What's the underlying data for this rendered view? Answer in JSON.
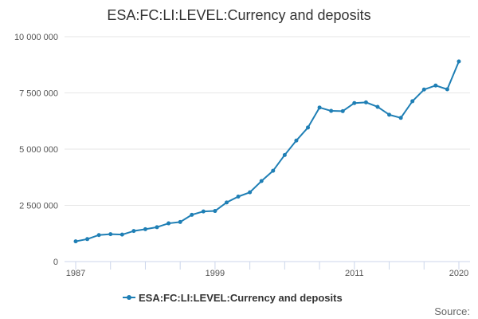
{
  "chart_data": {
    "type": "line",
    "title": "ESA:FC:LI:LEVEL:Currency and deposits",
    "xlabel": "",
    "ylabel": "",
    "x": [
      1987,
      1988,
      1989,
      1990,
      1991,
      1992,
      1993,
      1994,
      1995,
      1996,
      1997,
      1998,
      1999,
      2000,
      2001,
      2002,
      2003,
      2004,
      2005,
      2006,
      2007,
      2008,
      2009,
      2010,
      2011,
      2012,
      2013,
      2014,
      2015,
      2016,
      2017,
      2018,
      2019,
      2020
    ],
    "series": [
      {
        "name": "ESA:FC:LI:LEVEL:Currency and deposits",
        "color": "#1f7fb5",
        "values": [
          900000,
          1000000,
          1180000,
          1220000,
          1200000,
          1360000,
          1440000,
          1530000,
          1700000,
          1760000,
          2080000,
          2230000,
          2250000,
          2630000,
          2890000,
          3080000,
          3580000,
          4040000,
          4740000,
          5380000,
          5960000,
          6850000,
          6700000,
          6690000,
          7050000,
          7080000,
          6880000,
          6530000,
          6390000,
          7130000,
          7650000,
          7830000,
          7660000,
          8900000
        ]
      }
    ],
    "xlim": [
      1987,
      2020
    ],
    "ylim": [
      0,
      10000000
    ],
    "y_ticks": [
      0,
      2500000,
      5000000,
      7500000,
      10000000
    ],
    "y_tick_labels": [
      "0",
      "2 500 000",
      "5 000 000",
      "7 500 000",
      "10 000 000"
    ],
    "x_tick_values": [
      1987,
      1999,
      2011,
      2020
    ],
    "x_tick_labels": [
      "1987",
      "1999",
      "2011",
      "2020"
    ],
    "x_minor_ticks": [
      1987,
      1990,
      1993,
      1996,
      1999,
      2002,
      2005,
      2008,
      2011,
      2014,
      2017,
      2020
    ],
    "grid": true,
    "legend_position": "bottom-center",
    "credit": "Source:"
  }
}
